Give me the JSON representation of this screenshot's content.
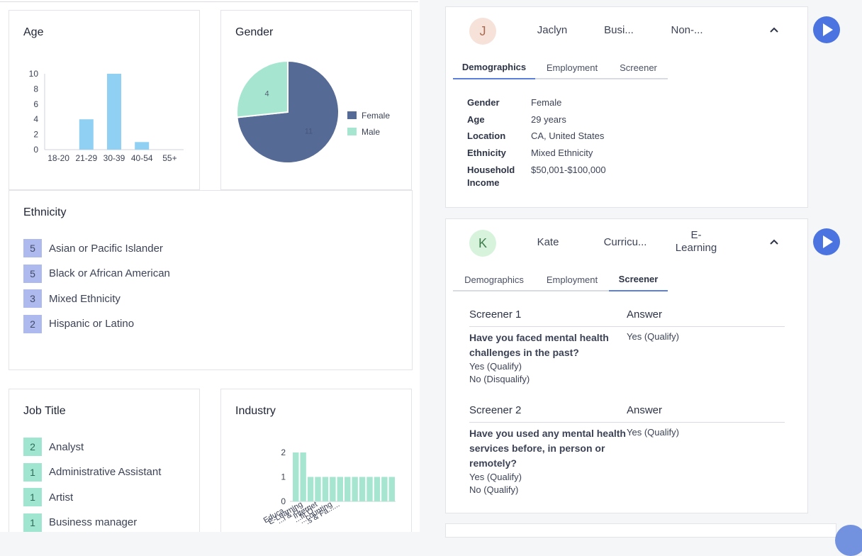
{
  "age": {
    "title": "Age",
    "chart_data": {
      "type": "bar",
      "title": "Age",
      "categories": [
        "18-20",
        "21-29",
        "30-39",
        "40-54",
        "55+"
      ],
      "values": [
        0,
        4,
        10,
        1,
        0
      ],
      "y_ticks": [
        "10",
        "8",
        "6",
        "4",
        "2",
        "0"
      ],
      "ylim": [
        0,
        10
      ],
      "color": "#8fd0f3"
    }
  },
  "gender": {
    "title": "Gender",
    "chart_data": {
      "type": "pie",
      "title": "Gender",
      "slices": [
        {
          "label": "Female",
          "value": 11,
          "color": "#566a96"
        },
        {
          "label": "Male",
          "value": 4,
          "color": "#a6e6d0"
        }
      ],
      "labels_shown": [
        "11",
        "4"
      ],
      "legend": "right"
    }
  },
  "ethnicity": {
    "title": "Ethnicity",
    "items": [
      {
        "count": "5",
        "label": "Asian or Pacific Islander"
      },
      {
        "count": "5",
        "label": "Black or African American"
      },
      {
        "count": "3",
        "label": "Mixed Ethnicity"
      },
      {
        "count": "2",
        "label": "Hispanic or Latino"
      }
    ]
  },
  "job_title": {
    "title": "Job Title",
    "items": [
      {
        "count": "2",
        "label": "Analyst"
      },
      {
        "count": "1",
        "label": "Administrative Assistant"
      },
      {
        "count": "1",
        "label": "Artist"
      },
      {
        "count": "1",
        "label": "Business manager"
      }
    ]
  },
  "industry": {
    "title": "Industry",
    "chart_data": {
      "type": "bar",
      "title": "Industry",
      "categories": [
        "Educa......",
        "E-Learning",
        "...l & H......",
        "Internet",
        "...fit O......",
        "...counting",
        "...s & Fa......",
        "",
        "",
        "",
        "",
        "",
        "",
        ""
      ],
      "values": [
        2,
        2,
        1,
        1,
        1,
        1,
        1,
        1,
        1,
        1,
        1,
        1,
        1,
        1
      ],
      "y_ticks": [
        "2",
        "1",
        "0"
      ],
      "ylim": [
        0,
        2
      ],
      "color": "#a6e6d0"
    }
  },
  "person1": {
    "avatar_letter": "J",
    "name": "Jaclyn",
    "industry": "Busi...",
    "job": "Non-...",
    "tabs": [
      "Demographics",
      "Employment",
      "Screener"
    ],
    "active_tab": "Demographics",
    "demographics": [
      {
        "label": "Gender",
        "value": "Female"
      },
      {
        "label": "Age",
        "value": "29 years"
      },
      {
        "label": "Location",
        "value": "CA, United States"
      },
      {
        "label": "Ethnicity",
        "value": "Mixed Ethnicity"
      },
      {
        "label": "Household Income",
        "value": "$50,001-$100,000"
      }
    ],
    "colors": {
      "avatar_bg": "#f6e2d9",
      "avatar_fg": "#a86b52"
    }
  },
  "person2": {
    "avatar_letter": "K",
    "name": "Kate",
    "industry": "Curricu...",
    "job": "E-Learning",
    "tabs": [
      "Demographics",
      "Employment",
      "Screener"
    ],
    "active_tab": "Screener",
    "screeners": [
      {
        "heading": "Screener 1",
        "answer_heading": "Answer",
        "question": "Have you faced mental health challenges in the past?",
        "options": [
          "Yes (Qualify)",
          "No (Disqualify)"
        ],
        "answer": "Yes (Qualify)"
      },
      {
        "heading": "Screener 2",
        "answer_heading": "Answer",
        "question": "Have you used any mental health services before, in person or remotely?",
        "options": [
          "Yes (Qualify)",
          "No (Qualify)"
        ],
        "answer": "Yes (Qualify)"
      }
    ],
    "colors": {
      "avatar_bg": "#d7f3dc",
      "avatar_fg": "#3e7d4d"
    }
  },
  "icons": {
    "play": "play-icon",
    "collapse": "chevron-up-icon"
  },
  "colors": {
    "accent": "#4c74e0",
    "tab_underline": "#5b7fdb"
  }
}
